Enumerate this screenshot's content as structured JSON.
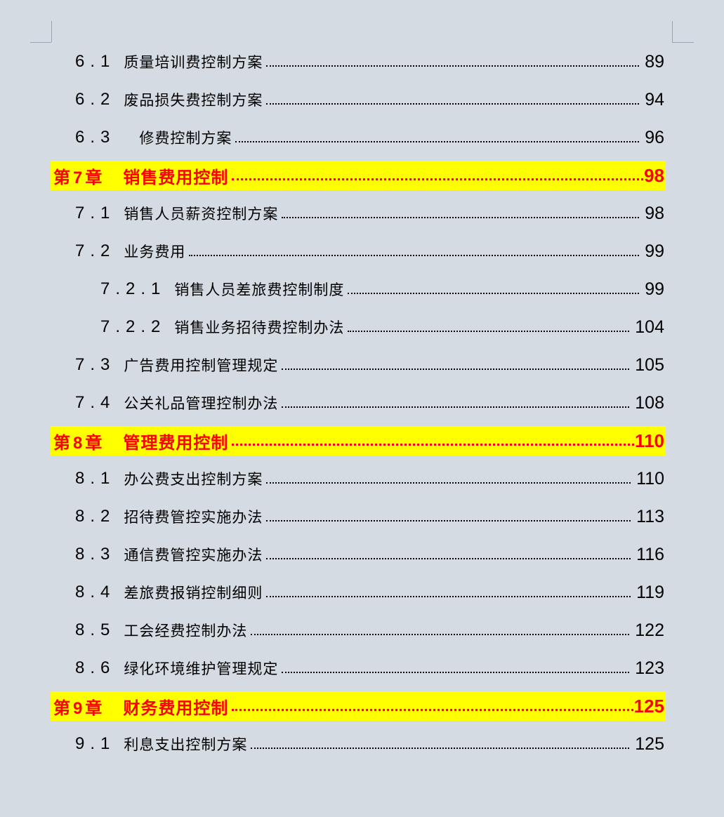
{
  "document": {
    "type": "table-of-contents-page",
    "colors": {
      "page_background": "#d5dbe3",
      "chapter_highlight": "#ffff00",
      "chapter_text": "#ff0000",
      "body_text": "#000000"
    }
  },
  "toc": {
    "entries": [
      {
        "level": 2,
        "number": "6.1",
        "title": "质量培训费控制方案",
        "page": "89",
        "highlight": false
      },
      {
        "level": 2,
        "number": "6.2",
        "title": "废品损失费控制方案",
        "page": "94",
        "highlight": false
      },
      {
        "level": 2,
        "number": "6.3",
        "title": "　修费控制方案",
        "page": "96",
        "highlight": false
      },
      {
        "level": 1,
        "number": "第7章",
        "title": "销售费用控制",
        "page": "98",
        "highlight": true
      },
      {
        "level": 2,
        "number": "7.1",
        "title": "销售人员薪资控制方案",
        "page": "98",
        "highlight": false
      },
      {
        "level": 2,
        "number": "7.2",
        "title": "业务费用",
        "page": "99",
        "highlight": false
      },
      {
        "level": 3,
        "number": "7.2.1",
        "title": "销售人员差旅费控制制度",
        "page": "99",
        "highlight": false
      },
      {
        "level": 3,
        "number": "7.2.2",
        "title": "销售业务招待费控制办法",
        "page": "104",
        "highlight": false
      },
      {
        "level": 2,
        "number": "7.3",
        "title": "广告费用控制管理规定",
        "page": "105",
        "highlight": false
      },
      {
        "level": 2,
        "number": "7.4",
        "title": "公关礼品管理控制办法",
        "page": "108",
        "highlight": false
      },
      {
        "level": 1,
        "number": "第8章",
        "title": "管理费用控制",
        "page": "110",
        "highlight": true
      },
      {
        "level": 2,
        "number": "8.1",
        "title": "办公费支出控制方案",
        "page": "110",
        "highlight": false
      },
      {
        "level": 2,
        "number": "8.2",
        "title": "招待费管控实施办法",
        "page": "113",
        "highlight": false
      },
      {
        "level": 2,
        "number": "8.3",
        "title": "通信费管控实施办法",
        "page": "116",
        "highlight": false
      },
      {
        "level": 2,
        "number": "8.4",
        "title": "差旅费报销控制细则",
        "page": "119",
        "highlight": false
      },
      {
        "level": 2,
        "number": "8.5",
        "title": "工会经费控制办法",
        "page": "122",
        "highlight": false
      },
      {
        "level": 2,
        "number": "8.6",
        "title": "绿化环境维护管理规定",
        "page": "123",
        "highlight": false
      },
      {
        "level": 1,
        "number": "第9章",
        "title": "财务费用控制",
        "page": "125",
        "highlight": true
      },
      {
        "level": 2,
        "number": "9.1",
        "title": "利息支出控制方案",
        "page": "125",
        "highlight": false
      }
    ]
  }
}
